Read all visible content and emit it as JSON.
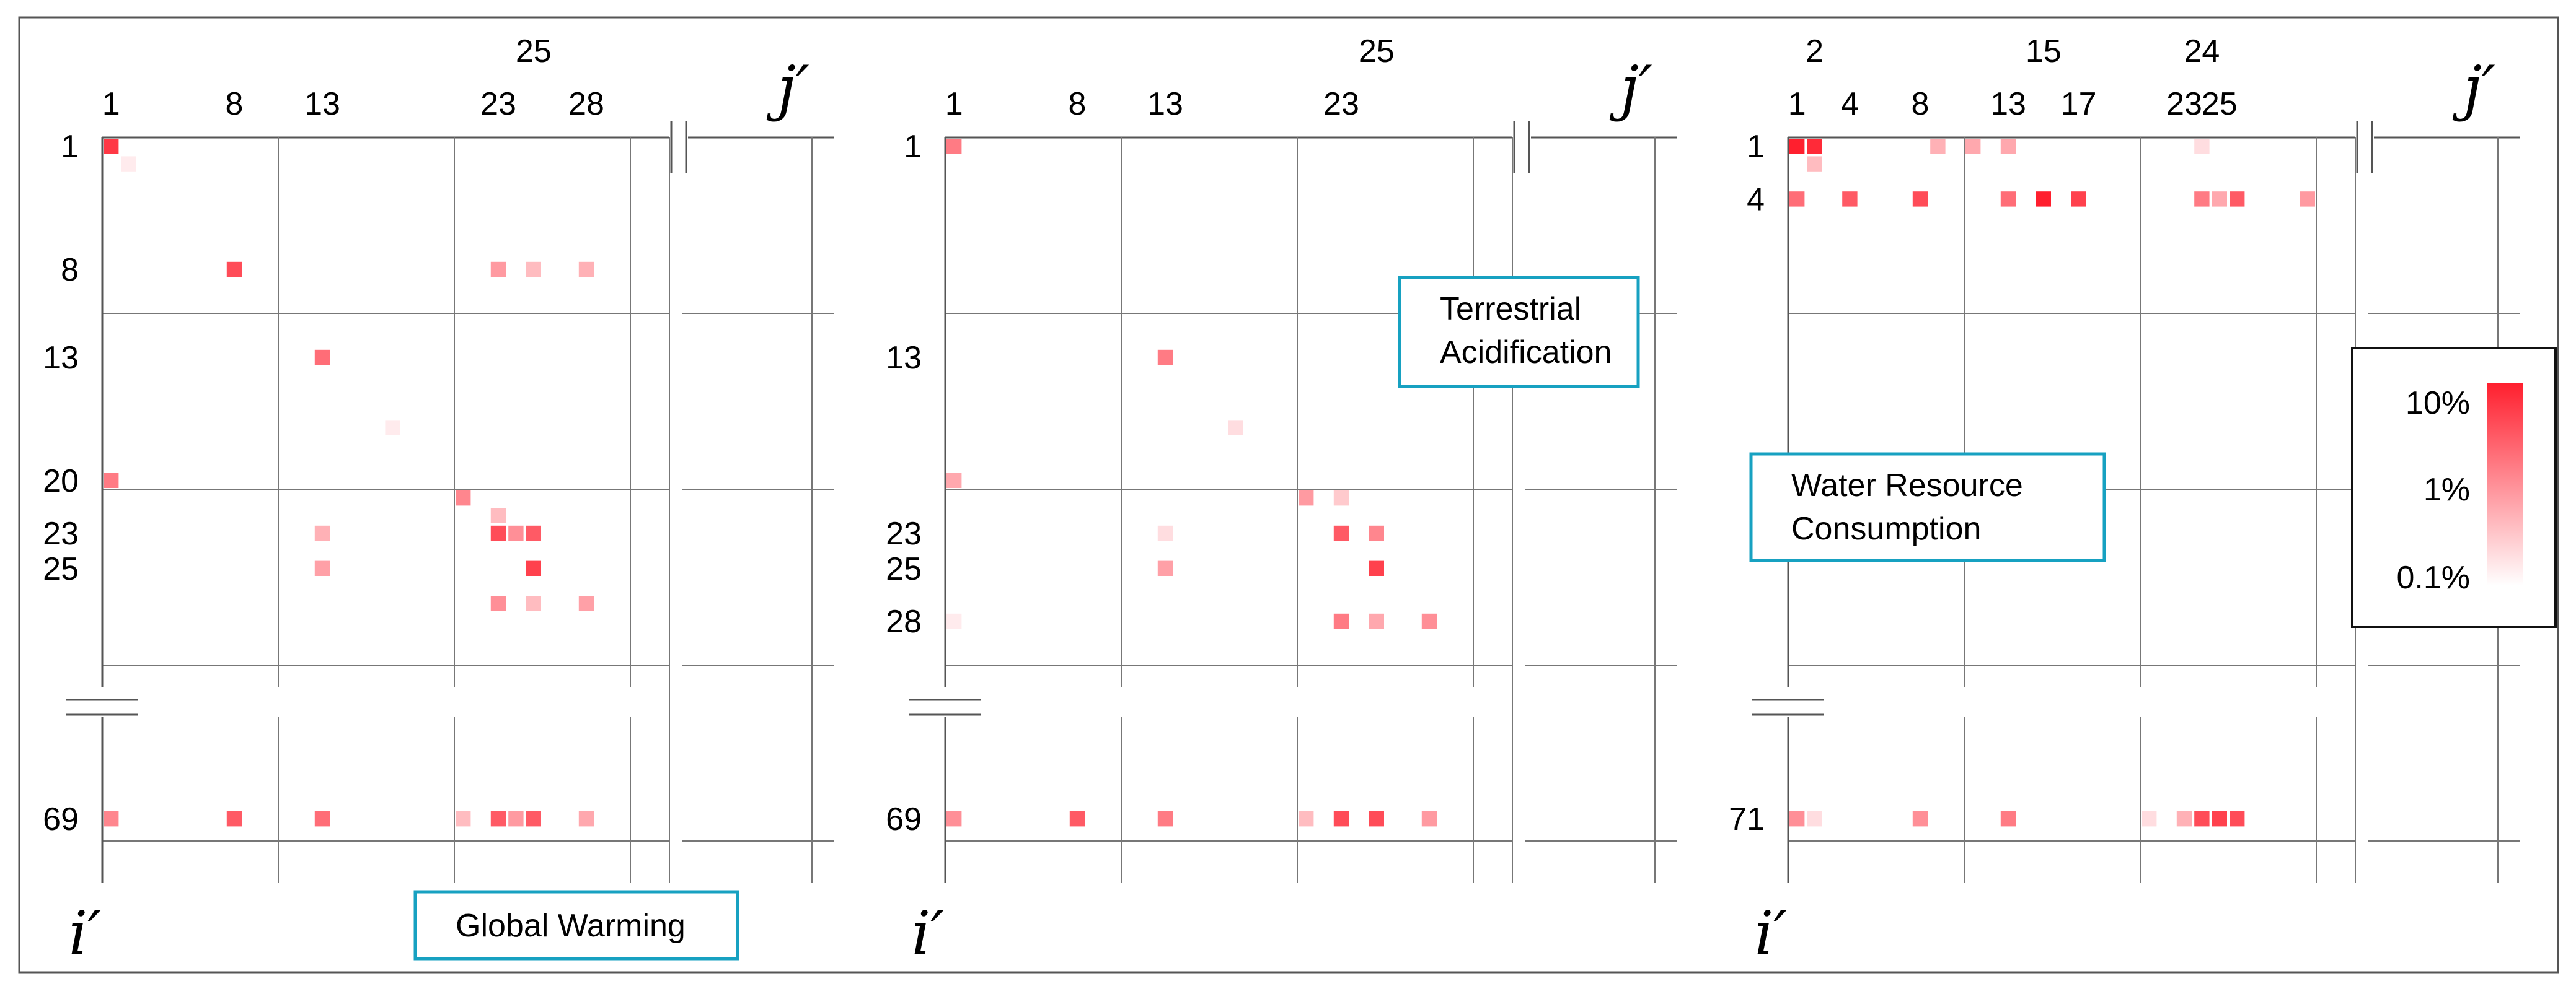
{
  "chart_data": [
    {
      "type": "heatmap",
      "title": "Global Warming",
      "xlabel": "j′",
      "ylabel": "i′",
      "x_ticks_top": [
        "25"
      ],
      "x_ticks": [
        "1",
        "8",
        "13",
        "23",
        "28"
      ],
      "y_ticks": [
        "1",
        "8",
        "13",
        "20",
        "23",
        "25",
        "69"
      ],
      "cells": [
        {
          "i": 1,
          "j": 1,
          "value": 6.0
        },
        {
          "i": 2,
          "j": 2,
          "value": 0.15
        },
        {
          "i": 8,
          "j": 8,
          "value": 4.0
        },
        {
          "i": 8,
          "j": 23,
          "value": 0.8
        },
        {
          "i": 8,
          "j": 25,
          "value": 0.4
        },
        {
          "i": 8,
          "j": 28,
          "value": 0.5
        },
        {
          "i": 13,
          "j": 13,
          "value": 2.0
        },
        {
          "i": 17,
          "j": 17,
          "value": 0.15
        },
        {
          "i": 20,
          "j": 1,
          "value": 1.5
        },
        {
          "i": 21,
          "j": 21,
          "value": 1.2
        },
        {
          "i": 22,
          "j": 23,
          "value": 0.4
        },
        {
          "i": 23,
          "j": 13,
          "value": 0.5
        },
        {
          "i": 23,
          "j": 23,
          "value": 4.0
        },
        {
          "i": 23,
          "j": 24,
          "value": 1.0
        },
        {
          "i": 23,
          "j": 25,
          "value": 3.0
        },
        {
          "i": 25,
          "j": 13,
          "value": 0.7
        },
        {
          "i": 25,
          "j": 25,
          "value": 5.0
        },
        {
          "i": 27,
          "j": 23,
          "value": 1.0
        },
        {
          "i": 27,
          "j": 25,
          "value": 0.4
        },
        {
          "i": 27,
          "j": 28,
          "value": 0.7
        },
        {
          "i": 69,
          "j": 1,
          "value": 1.2
        },
        {
          "i": 69,
          "j": 8,
          "value": 3.0
        },
        {
          "i": 69,
          "j": 13,
          "value": 2.0
        },
        {
          "i": 69,
          "j": 21,
          "value": 0.4
        },
        {
          "i": 69,
          "j": 23,
          "value": 3.0
        },
        {
          "i": 69,
          "j": 24,
          "value": 0.8
        },
        {
          "i": 69,
          "j": 25,
          "value": 3.0
        },
        {
          "i": 69,
          "j": 28,
          "value": 0.6
        }
      ]
    },
    {
      "type": "heatmap",
      "title": "Terrestrial Acidification",
      "xlabel": "j′",
      "ylabel": "i′",
      "x_ticks_top": [
        "25"
      ],
      "x_ticks": [
        "1",
        "8",
        "13",
        "23"
      ],
      "y_ticks": [
        "1",
        "13",
        "23",
        "25",
        "28",
        "69"
      ],
      "cells": [
        {
          "i": 1,
          "j": 1,
          "value": 1.5
        },
        {
          "i": 13,
          "j": 13,
          "value": 1.5
        },
        {
          "i": 17,
          "j": 17,
          "value": 0.2
        },
        {
          "i": 20,
          "j": 1,
          "value": 0.6
        },
        {
          "i": 21,
          "j": 21,
          "value": 0.8
        },
        {
          "i": 21,
          "j": 23,
          "value": 0.3
        },
        {
          "i": 23,
          "j": 13,
          "value": 0.2
        },
        {
          "i": 23,
          "j": 23,
          "value": 3.0
        },
        {
          "i": 23,
          "j": 25,
          "value": 1.2
        },
        {
          "i": 25,
          "j": 13,
          "value": 0.7
        },
        {
          "i": 25,
          "j": 25,
          "value": 5.0
        },
        {
          "i": 28,
          "j": 1,
          "value": 0.15
        },
        {
          "i": 28,
          "j": 23,
          "value": 1.5
        },
        {
          "i": 28,
          "j": 25,
          "value": 0.6
        },
        {
          "i": 28,
          "j": 28,
          "value": 1.0
        },
        {
          "i": 69,
          "j": 1,
          "value": 1.0
        },
        {
          "i": 69,
          "j": 8,
          "value": 3.0
        },
        {
          "i": 69,
          "j": 13,
          "value": 1.5
        },
        {
          "i": 69,
          "j": 21,
          "value": 0.4
        },
        {
          "i": 69,
          "j": 23,
          "value": 4.0
        },
        {
          "i": 69,
          "j": 25,
          "value": 4.0
        },
        {
          "i": 69,
          "j": 28,
          "value": 0.8
        }
      ]
    },
    {
      "type": "heatmap",
      "title": "Water Resource Consumption",
      "xlabel": "j′",
      "ylabel": "i′",
      "x_ticks_top": [
        "2",
        "15",
        "24"
      ],
      "x_ticks": [
        "1",
        "4",
        "8",
        "13",
        "17",
        "23",
        "25"
      ],
      "y_ticks": [
        "1",
        "4",
        "71"
      ],
      "cells": [
        {
          "i": 1,
          "j": 1,
          "value": 10.0
        },
        {
          "i": 1,
          "j": 2,
          "value": 8.0
        },
        {
          "i": 2,
          "j": 2,
          "value": 0.4
        },
        {
          "i": 1,
          "j": 9,
          "value": 0.5
        },
        {
          "i": 1,
          "j": 11,
          "value": 0.6
        },
        {
          "i": 1,
          "j": 13,
          "value": 0.6
        },
        {
          "i": 1,
          "j": 24,
          "value": 0.2
        },
        {
          "i": 4,
          "j": 1,
          "value": 2.0
        },
        {
          "i": 4,
          "j": 4,
          "value": 3.0
        },
        {
          "i": 4,
          "j": 8,
          "value": 4.0
        },
        {
          "i": 4,
          "j": 13,
          "value": 2.0
        },
        {
          "i": 4,
          "j": 15,
          "value": 10.0
        },
        {
          "i": 4,
          "j": 17,
          "value": 5.0
        },
        {
          "i": 4,
          "j": 24,
          "value": 1.5
        },
        {
          "i": 4,
          "j": 25,
          "value": 0.6
        },
        {
          "i": 4,
          "j": 26,
          "value": 3.0
        },
        {
          "i": 4,
          "j": 30,
          "value": 0.8
        },
        {
          "i": 71,
          "j": 1,
          "value": 1.0
        },
        {
          "i": 71,
          "j": 2,
          "value": 0.2
        },
        {
          "i": 71,
          "j": 8,
          "value": 1.0
        },
        {
          "i": 71,
          "j": 13,
          "value": 1.5
        },
        {
          "i": 71,
          "j": 21,
          "value": 0.2
        },
        {
          "i": 71,
          "j": 23,
          "value": 0.5
        },
        {
          "i": 71,
          "j": 24,
          "value": 4.0
        },
        {
          "i": 71,
          "j": 25,
          "value": 5.0
        },
        {
          "i": 71,
          "j": 26,
          "value": 4.0
        }
      ]
    }
  ],
  "legend": {
    "labels": [
      "10%",
      "1%",
      "0.1%"
    ],
    "scale": "log",
    "range": [
      0.1,
      10
    ],
    "colors": {
      "high": "#ff1f2e",
      "low": "#ffffff"
    }
  }
}
